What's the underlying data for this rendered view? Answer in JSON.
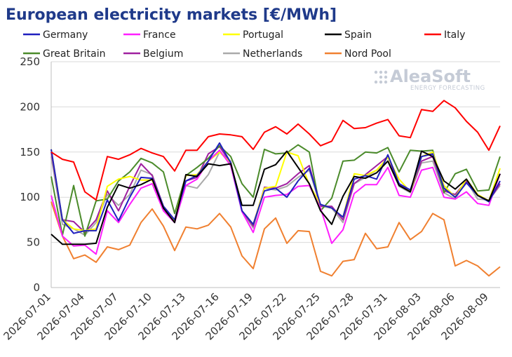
{
  "chart_data": {
    "type": "line",
    "title": "European electricity markets [€/MWh]",
    "xlabel": "",
    "ylabel": "",
    "ylim": [
      0,
      250
    ],
    "yticks": [
      0,
      50,
      100,
      150,
      200,
      250
    ],
    "grid": true,
    "legend_position": "top",
    "x": [
      "2026-07-01",
      "2026-07-02",
      "2026-07-03",
      "2026-07-04",
      "2026-07-05",
      "2026-07-06",
      "2026-07-07",
      "2026-07-08",
      "2026-07-09",
      "2026-07-10",
      "2026-07-11",
      "2026-07-12",
      "2026-07-13",
      "2026-07-14",
      "2026-07-15",
      "2026-07-16",
      "2026-07-17",
      "2026-07-18",
      "2026-07-19",
      "2026-07-20",
      "2026-07-21",
      "2026-07-22",
      "2026-07-23",
      "2026-07-24",
      "2026-07-25",
      "2026-07-26",
      "2026-07-27",
      "2026-07-28",
      "2026-07-29",
      "2026-07-30",
      "2026-07-31",
      "2026-08-01",
      "2026-08-02",
      "2026-08-03",
      "2026-08-04",
      "2026-08-05",
      "2026-08-06",
      "2026-08-07",
      "2026-08-08",
      "2026-08-09",
      "2026-08-10"
    ],
    "xtick_labels": [
      "2026-07-01",
      "2026-07-04",
      "2026-07-07",
      "2026-07-10",
      "2026-07-13",
      "2026-07-16",
      "2026-07-19",
      "2026-07-22",
      "2026-07-25",
      "2026-07-28",
      "2026-07-31",
      "2026-08-03",
      "2026-08-06",
      "2026-08-09"
    ],
    "series": [
      {
        "name": "Germany",
        "color": "#1f1fbf",
        "values": [
          153,
          75,
          60,
          63,
          63,
          97,
          74,
          100,
          122,
          121,
          90,
          75,
          118,
          124,
          140,
          160,
          138,
          85,
          70,
          107,
          110,
          100,
          118,
          132,
          92,
          88,
          78,
          120,
          124,
          120,
          147,
          115,
          108,
          145,
          148,
          110,
          100,
          116,
          102,
          95,
          118
        ]
      },
      {
        "name": "France",
        "color": "#ff1fff",
        "values": [
          102,
          57,
          46,
          47,
          37,
          85,
          72,
          92,
          110,
          115,
          85,
          72,
          113,
          120,
          140,
          152,
          135,
          84,
          61,
          100,
          102,
          103,
          112,
          113,
          88,
          49,
          64,
          104,
          114,
          114,
          133,
          102,
          100,
          130,
          133,
          100,
          98,
          106,
          93,
          91,
          126
        ]
      },
      {
        "name": "Portugal",
        "color": "#ffff00",
        "values": [
          153,
          75,
          65,
          63,
          65,
          112,
          120,
          123,
          119,
          119,
          90,
          74,
          124,
          125,
          140,
          150,
          138,
          85,
          70,
          110,
          112,
          150,
          146,
          114,
          92,
          88,
          78,
          126,
          124,
          130,
          144,
          120,
          106,
          145,
          150,
          113,
          100,
          120,
          103,
          96,
          132
        ]
      },
      {
        "name": "Spain",
        "color": "#000000",
        "values": [
          59,
          48,
          48,
          48,
          49,
          89,
          114,
          110,
          114,
          120,
          88,
          72,
          125,
          123,
          137,
          135,
          137,
          91,
          91,
          131,
          136,
          151,
          133,
          115,
          85,
          70,
          101,
          123,
          121,
          127,
          140,
          113,
          106,
          151,
          145,
          118,
          109,
          120,
          102,
          96,
          126
        ]
      },
      {
        "name": "Italy",
        "color": "#ff0000",
        "values": [
          150,
          142,
          139,
          106,
          97,
          145,
          142,
          147,
          154,
          149,
          145,
          129,
          152,
          152,
          167,
          170,
          169,
          167,
          153,
          172,
          178,
          170,
          181,
          170,
          157,
          162,
          185,
          176,
          177,
          182,
          186,
          168,
          166,
          197,
          195,
          207,
          199,
          184,
          172,
          152,
          179
        ]
      },
      {
        "name": "Great Britain",
        "color": "#4b8b2b",
        "values": [
          123,
          58,
          113,
          57,
          96,
          98,
          118,
          128,
          143,
          138,
          128,
          82,
          124,
          133,
          143,
          157,
          145,
          115,
          100,
          153,
          148,
          149,
          158,
          150,
          85,
          99,
          140,
          141,
          150,
          149,
          155,
          128,
          152,
          151,
          152,
          105,
          126,
          131,
          107,
          108,
          145
        ]
      },
      {
        "name": "Belgium",
        "color": "#a020a0",
        "values": [
          150,
          75,
          73,
          61,
          75,
          107,
          85,
          112,
          137,
          124,
          90,
          75,
          118,
          122,
          148,
          156,
          138,
          85,
          68,
          111,
          110,
          115,
          126,
          135,
          90,
          90,
          75,
          115,
          125,
          135,
          145,
          115,
          106,
          140,
          145,
          107,
          103,
          118,
          102,
          96,
          115
        ]
      },
      {
        "name": "Netherlands",
        "color": "#aaaaaa",
        "values": [
          145,
          70,
          65,
          58,
          72,
          103,
          91,
          103,
          130,
          125,
          90,
          75,
          113,
          110,
          125,
          150,
          140,
          85,
          66,
          110,
          108,
          112,
          122,
          130,
          90,
          88,
          72,
          115,
          122,
          130,
          140,
          112,
          105,
          138,
          140,
          105,
          98,
          118,
          98,
          97,
          113
        ]
      },
      {
        "name": "Nord Pool",
        "color": "#f08030",
        "values": [
          95,
          57,
          32,
          36,
          28,
          45,
          42,
          47,
          72,
          87,
          68,
          41,
          67,
          65,
          69,
          82,
          67,
          35,
          21,
          65,
          77,
          49,
          63,
          62,
          18,
          13,
          29,
          31,
          60,
          43,
          45,
          72,
          53,
          62,
          82,
          75,
          24,
          30,
          24,
          13,
          23
        ]
      }
    ]
  },
  "watermark": {
    "brand": "AleaSoft",
    "tagline": "ENERGY FORECASTING"
  }
}
